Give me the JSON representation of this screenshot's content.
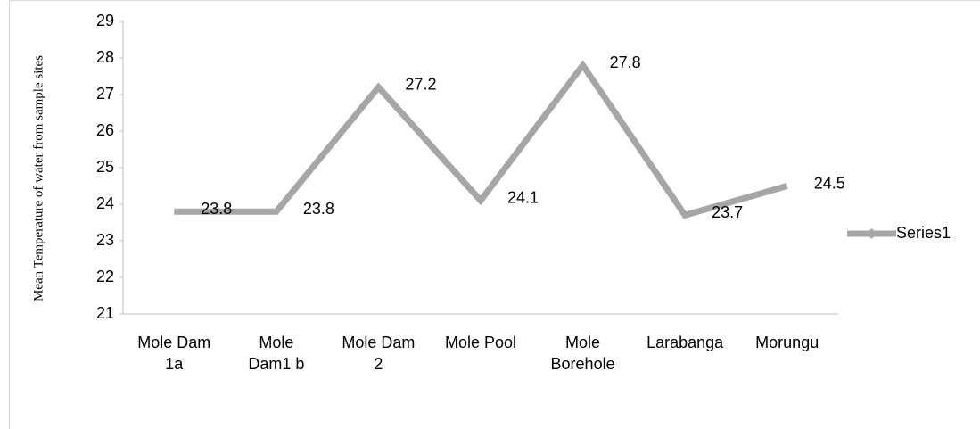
{
  "chart_data": {
    "type": "line",
    "y_axis_label": "Mean Temperature of water  from sample sites",
    "categories": [
      "Mole Dam\n1a",
      "Mole\nDam1 b",
      "Mole Dam\n2",
      "Mole Pool",
      "Mole\nBorehole",
      "Larabanga",
      "Morungu"
    ],
    "series": [
      {
        "name": "Series1",
        "color": "#a6a6a6",
        "values": [
          23.8,
          23.8,
          27.2,
          24.1,
          27.8,
          23.7,
          24.5
        ]
      }
    ],
    "ylim": [
      21,
      29
    ],
    "yticks": [
      21,
      22,
      23,
      24,
      25,
      26,
      27,
      28,
      29
    ],
    "grid": false,
    "data_labels": true,
    "legend": "right"
  }
}
